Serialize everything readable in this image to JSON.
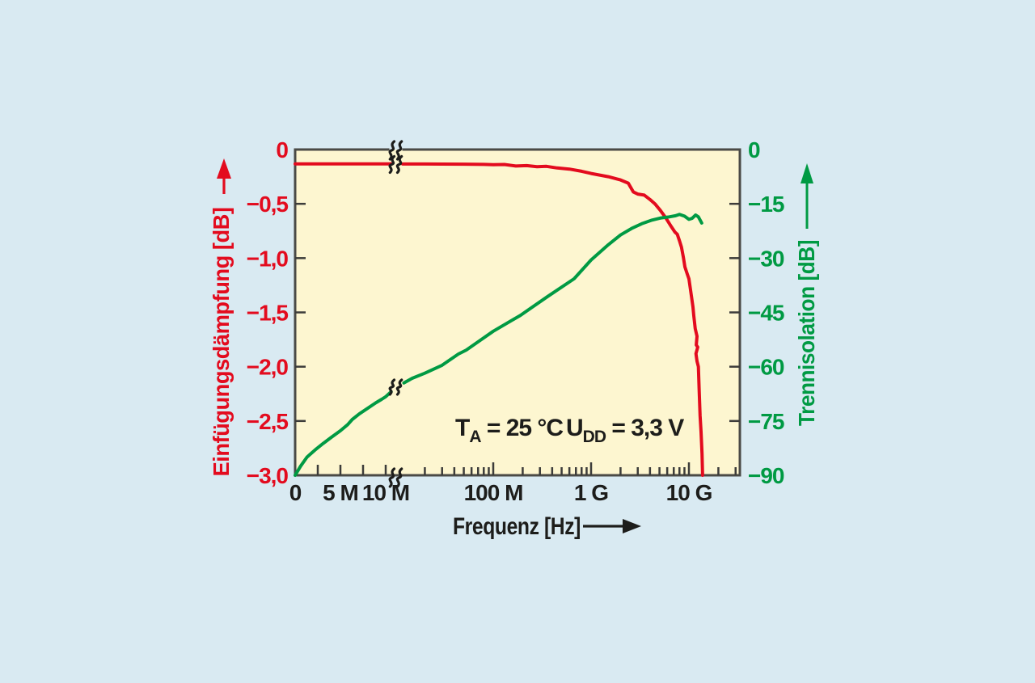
{
  "page": {
    "background": "#d9eaf2",
    "plot_background": "#fdf6d0"
  },
  "chart_data": {
    "type": "line",
    "annotation": {
      "t_sym": "T",
      "t_sub": "A",
      "t_eq": " = 25 °C",
      "u_sym": "U",
      "u_sub": "DD",
      "u_eq": " = 3,3 V"
    },
    "x_axis": {
      "label": "Frequenz [Hz]",
      "scale": "linear 0–10 MHz, axis break, logarithmic 20 MHz–30 GHz",
      "labeled_ticks": [
        {
          "f": 0,
          "label": "0"
        },
        {
          "f": 5000000.0,
          "label": "5 M"
        },
        {
          "f": 10000000.0,
          "label": "10 M"
        },
        {
          "f": 100000000.0,
          "label": "100 M"
        },
        {
          "f": 1000000000.0,
          "label": "1 G"
        },
        {
          "f": 10000000000.0,
          "label": "10 G"
        }
      ],
      "minor_ticks_linear": [
        2500000.0,
        7500000.0
      ]
    },
    "y_left": {
      "label": "Einfügungsdämpfung [dB]",
      "color": "#e30b1e",
      "range": [
        -3,
        0
      ],
      "ticks": [
        {
          "v": 0,
          "label": "0"
        },
        {
          "v": -0.5,
          "label": "−0,5"
        },
        {
          "v": -1.0,
          "label": "−1,0"
        },
        {
          "v": -1.5,
          "label": "−1,5"
        },
        {
          "v": -2.0,
          "label": "−2,0"
        },
        {
          "v": -2.5,
          "label": "−2,5"
        },
        {
          "v": -3.0,
          "label": "−3,0"
        }
      ]
    },
    "y_right": {
      "label": "Trennisolation [dB]",
      "color": "#009a43",
      "range": [
        -90,
        0
      ],
      "ticks": [
        {
          "v": 0,
          "label": "0"
        },
        {
          "v": -15,
          "label": "−15"
        },
        {
          "v": -30,
          "label": "−30"
        },
        {
          "v": -45,
          "label": "−45"
        },
        {
          "v": -60,
          "label": "−60"
        },
        {
          "v": -75,
          "label": "−75"
        },
        {
          "v": -90,
          "label": "−90"
        }
      ]
    },
    "layout_hints": {
      "grid": false,
      "legend": "none",
      "axis_break_between": [
        "10 M",
        "20 M"
      ],
      "break_marks_on": [
        "top-axis",
        "insertion-loss-curve",
        "isolation-curve",
        "bottom-axis"
      ]
    },
    "series": [
      {
        "name": "Einfügungsdämpfung",
        "axis": "left",
        "color": "#e30b1e",
        "points_pre_break": [
          [
            0,
            -0.132
          ],
          [
            2000000.0,
            -0.132
          ],
          [
            4000000.0,
            -0.132
          ],
          [
            6000000.0,
            -0.132
          ],
          [
            8000000.0,
            -0.132
          ],
          [
            10000000.0,
            -0.132
          ],
          [
            11000000.0,
            -0.132
          ]
        ],
        "points_post_break": [
          [
            13500000.0,
            -0.133
          ],
          [
            20000000.0,
            -0.133
          ],
          [
            30000000.0,
            -0.134
          ],
          [
            50000000.0,
            -0.135
          ],
          [
            80000000.0,
            -0.137
          ],
          [
            100000000.0,
            -0.14
          ],
          [
            130000000.0,
            -0.138
          ],
          [
            170000000.0,
            -0.152
          ],
          [
            220000000.0,
            -0.148
          ],
          [
            280000000.0,
            -0.158
          ],
          [
            350000000.0,
            -0.155
          ],
          [
            450000000.0,
            -0.17
          ],
          [
            600000000.0,
            -0.18
          ],
          [
            800000000.0,
            -0.2
          ],
          [
            1000000000.0,
            -0.22
          ],
          [
            1500000000.0,
            -0.25
          ],
          [
            2000000000.0,
            -0.28
          ],
          [
            2400000000.0,
            -0.31
          ],
          [
            2700000000.0,
            -0.39
          ],
          [
            3000000000.0,
            -0.41
          ],
          [
            3500000000.0,
            -0.42
          ],
          [
            4000000000.0,
            -0.46
          ],
          [
            4500000000.0,
            -0.5
          ],
          [
            5100000000.0,
            -0.56
          ],
          [
            5800000000.0,
            -0.63
          ],
          [
            6600000000.0,
            -0.71
          ],
          [
            7200000000.0,
            -0.76
          ],
          [
            7600000000.0,
            -0.78
          ],
          [
            8000000000.0,
            -0.84
          ],
          [
            8400000000.0,
            -0.9
          ],
          [
            8800000000.0,
            -1.0
          ],
          [
            9100000000.0,
            -1.08
          ],
          [
            9650000000.0,
            -1.15
          ],
          [
            10000000000.0,
            -1.19
          ],
          [
            10600000000.0,
            -1.35
          ],
          [
            11000000000.0,
            -1.45
          ],
          [
            11200000000.0,
            -1.53
          ],
          [
            11600000000.0,
            -1.65
          ],
          [
            12100000000.0,
            -1.72
          ],
          [
            11900000000.0,
            -1.8
          ],
          [
            12300000000.0,
            -1.82
          ],
          [
            11800000000.0,
            -1.88
          ],
          [
            12100000000.0,
            -1.95
          ],
          [
            12500000000.0,
            -2.0
          ],
          [
            12700000000.0,
            -2.2
          ],
          [
            13000000000.0,
            -2.45
          ],
          [
            13300000000.0,
            -2.6
          ],
          [
            13600000000.0,
            -2.8
          ],
          [
            13800000000.0,
            -3.0
          ]
        ]
      },
      {
        "name": "Trennisolation",
        "axis": "right",
        "color": "#009a43",
        "points_pre_break": [
          [
            0,
            -90
          ],
          [
            600000.0,
            -87.5
          ],
          [
            1300000.0,
            -85
          ],
          [
            2200000.0,
            -83
          ],
          [
            3100000.0,
            -81.2
          ],
          [
            4000000.0,
            -79.5
          ],
          [
            5000000.0,
            -77.7
          ],
          [
            5800000.0,
            -76
          ],
          [
            6300000.0,
            -74.6
          ],
          [
            7100000.0,
            -73
          ],
          [
            8000000.0,
            -71.5
          ],
          [
            8900000.0,
            -70
          ],
          [
            9550000.0,
            -69
          ],
          [
            10000000.0,
            -68.3
          ],
          [
            11000000.0,
            -66.9
          ]
        ],
        "points_post_break": [
          [
            13800000.0,
            -64.5
          ],
          [
            16000000.0,
            -63.2
          ],
          [
            20000000.0,
            -61.8
          ],
          [
            30000000.0,
            -59.6
          ],
          [
            44000000.0,
            -56.5
          ],
          [
            53000000.0,
            -55.4
          ],
          [
            72000000.0,
            -52.9
          ],
          [
            100000000.0,
            -50.2
          ],
          [
            190000000.0,
            -45.8
          ],
          [
            360000000.0,
            -40.6
          ],
          [
            670000000.0,
            -35.7
          ],
          [
            1000000000.0,
            -30.5
          ],
          [
            1500000000.0,
            -26.3
          ],
          [
            2000000000.0,
            -23.6
          ],
          [
            2600000000.0,
            -21.8
          ],
          [
            3300000000.0,
            -20.5
          ],
          [
            4200000000.0,
            -19.5
          ],
          [
            5200000000.0,
            -18.9
          ],
          [
            6300000000.0,
            -18.6
          ],
          [
            7300000000.0,
            -18.3
          ],
          [
            8000000000.0,
            -17.9
          ],
          [
            9000000000.0,
            -18.4
          ],
          [
            10000000000.0,
            -19.3
          ],
          [
            10800000000.0,
            -19.0
          ],
          [
            11700000000.0,
            -18.1
          ],
          [
            12500000000.0,
            -18.6
          ],
          [
            13200000000.0,
            -19.8
          ],
          [
            13500000000.0,
            -20.3
          ]
        ]
      }
    ]
  }
}
